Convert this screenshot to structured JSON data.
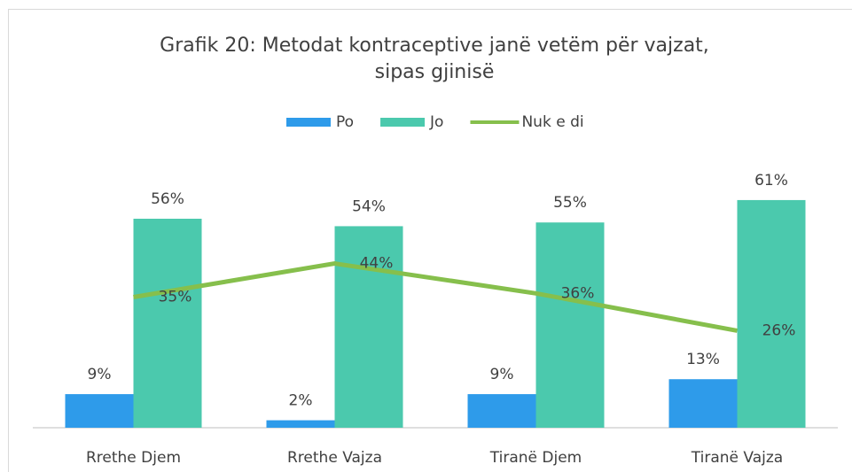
{
  "chart_data": {
    "type": "bar",
    "title": [
      "Grafik 20: Metodat kontraceptive janë vetëm për vajzat,",
      "sipas gjinisë"
    ],
    "categories": [
      "Rrethe Djem",
      "Rrethe Vajza",
      "Tiranë Djem",
      "Tiranë Vajza"
    ],
    "series": [
      {
        "name": "Po",
        "color": "#2e9bea",
        "type": "bar",
        "values": [
          9,
          2,
          9,
          13
        ],
        "value_labels": [
          "9%",
          "2%",
          "9%",
          "13%"
        ]
      },
      {
        "name": "Jo",
        "color": "#4bc9ad",
        "type": "bar",
        "values": [
          56,
          54,
          55,
          61
        ],
        "value_labels": [
          "56%",
          "54%",
          "55%",
          "61%"
        ]
      },
      {
        "name": "Nuk e di",
        "color": "#86bf4c",
        "type": "line",
        "values": [
          35,
          44,
          36,
          26
        ],
        "value_labels": [
          "35%",
          "44%",
          "36%",
          "26%"
        ]
      }
    ],
    "ylim": [
      0,
      70
    ],
    "legend": "top"
  }
}
